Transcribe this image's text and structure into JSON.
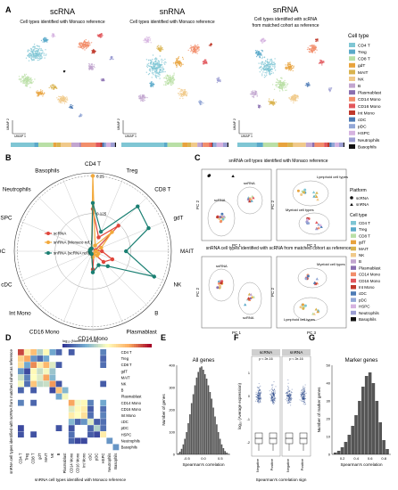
{
  "panels": {
    "A": {
      "letter": "A",
      "umaps": [
        {
          "title": "scRNA",
          "subtitle1": "Cell types identified with Monaco reference",
          "subtitle2": ""
        },
        {
          "title": "snRNA",
          "subtitle1": "Cell types identified with Monaco reference",
          "subtitle2": ""
        },
        {
          "title": "snRNA",
          "subtitle1": "Cell types identified with scRNA",
          "subtitle2": "from matched cohort as reference"
        }
      ],
      "axis_x": "UMAP 1",
      "axis_y": "UMAP 2",
      "legend_title": "Cell type"
    },
    "B": {
      "letter": "B"
    },
    "C": {
      "letter": "C",
      "top_title": "snRNA cell types identified with Monaco reference",
      "bottom_title": "snRNA cell types identified with scRNA from matched cohort as reference",
      "pc1": "PC 1",
      "pc2": "PC 2",
      "pc3": "PC 3",
      "platform_title": "Platform",
      "platforms": [
        "scRNA",
        "snRNA"
      ],
      "celltype_title": "Cell type",
      "annotations": {
        "lymphoid": "Lymphoid cell types",
        "myeloid": "Myeloid cell types",
        "scrna": "scRNA",
        "snrna": "snRNA"
      }
    },
    "D": {
      "letter": "D",
      "scale_label": "log₁₀ (Number of cells)",
      "ylabel": "snRNA cell types identified with scRNA from matched cohort as reference",
      "xlabel": "snRNA cell types identified with Monaco reference"
    },
    "E": {
      "letter": "E",
      "title": "All genes",
      "xlabel": "Spearman's correlation",
      "ylabel": "Number of genes",
      "yticks": [
        "0",
        "100",
        "200",
        "300",
        "400"
      ],
      "xticks": [
        "-0.5",
        "0.0",
        "0.5"
      ]
    },
    "F": {
      "letter": "F",
      "ylabel": "log₁₀ (Average expression)",
      "xlabel": "Spearman's correlation sign",
      "facets": [
        "scRNA",
        "snRNA"
      ],
      "pvals": [
        "p < 2e-16",
        "p < 2e-16"
      ],
      "xcats": [
        "Negative",
        "Positive"
      ]
    },
    "G": {
      "letter": "G",
      "title": "Marker genes",
      "xlabel": "Spearman's correlation",
      "ylabel": "Number of marker genes",
      "yticks": [
        "0",
        "10",
        "20",
        "30",
        "40",
        "50"
      ],
      "xticks": [
        "0.2",
        "0.4",
        "0.6",
        "0.8"
      ]
    }
  },
  "cell_types": [
    {
      "name": "CD4 T",
      "color": "#7fc6d4"
    },
    {
      "name": "Treg",
      "color": "#5aa9c9"
    },
    {
      "name": "CD8 T",
      "color": "#b9dfa6"
    },
    {
      "name": "gdT",
      "color": "#e8a33d"
    },
    {
      "name": "MAIT",
      "color": "#d9b34f"
    },
    {
      "name": "NK",
      "color": "#f0c98a"
    },
    {
      "name": "B",
      "color": "#c2a5cf"
    },
    {
      "name": "Plasmablast",
      "color": "#8a6fb0"
    },
    {
      "name": "CD14 Mono",
      "color": "#f28e6b"
    },
    {
      "name": "CD16 Mono",
      "color": "#e2575c"
    },
    {
      "name": "Int Mono",
      "color": "#c0392b"
    },
    {
      "name": "cDC",
      "color": "#4d7bb5"
    },
    {
      "name": "pDC",
      "color": "#93a7d6"
    },
    {
      "name": "HSPC",
      "color": "#d6b3e0"
    },
    {
      "name": "Neutrophils",
      "color": "#9c9ed3"
    },
    {
      "name": "Basophils",
      "color": "#111111"
    }
  ],
  "chart_data": [
    {
      "type": "radar",
      "panel": "B",
      "axes": [
        "CD4 T",
        "Treg",
        "CD8 T",
        "gdT",
        "MAIT",
        "NK",
        "B",
        "Plasmablast",
        "CD14 Mono",
        "CD16 Mono",
        "Int Mono",
        "cDC",
        "pDC",
        "HSPC",
        "Neutrophils",
        "Basophils"
      ],
      "rings": [
        "0.125",
        "0.25"
      ],
      "rmax": 0.26,
      "series": [
        {
          "name": "scRNA",
          "color": "#e0463b",
          "values": [
            0.14,
            0.05,
            0.12,
            0.01,
            0.03,
            0.07,
            0.05,
            0.01,
            0.06,
            0.01,
            0.01,
            0.01,
            0.01,
            0.01,
            0.01,
            0.01
          ]
        },
        {
          "name": "snRNA (Monaco ref.)",
          "color": "#f2a93b",
          "values": [
            0.25,
            0.02,
            0.09,
            0.03,
            0.01,
            0.02,
            0.02,
            0.01,
            0.02,
            0.01,
            0.01,
            0.01,
            0.01,
            0.01,
            0.01,
            0.01
          ]
        },
        {
          "name": "snRNA (scRNA ref.)",
          "color": "#1a7f72",
          "values": [
            0.16,
            0.07,
            0.21,
            0.2,
            0.11,
            0.22,
            0.07,
            0.05,
            0.07,
            0.01,
            0.01,
            0.01,
            0.01,
            0.01,
            0.01,
            0.01
          ]
        }
      ]
    },
    {
      "type": "heatmap",
      "panel": "D",
      "rows": [
        "CD4 T",
        "Treg",
        "CD8 T",
        "gdT",
        "MAIT",
        "NK",
        "B",
        "Plasmablast",
        "CD14 Mono",
        "CD16 Mono",
        "Int Mono",
        "cDC",
        "pDC",
        "HSPC",
        "Neutrophils",
        "Basophils"
      ],
      "cols": [
        "CD4 T",
        "Treg",
        "CD8 T",
        "gdT",
        "MAIT",
        "NK",
        "B",
        "Plasmablast",
        "CD14 Mono",
        "CD16 Mono",
        "Int Mono",
        "cDC",
        "pDC",
        "HSPC",
        "Neutrophils",
        "Basophils"
      ],
      "values": [
        [
          4.5,
          2.8,
          3.5,
          1.8,
          2.6,
          1.2,
          0.5,
          0,
          0.4,
          0,
          0,
          0,
          0,
          0.8,
          0,
          0
        ],
        [
          3.2,
          3.8,
          1.0,
          0.5,
          1.2,
          0,
          0,
          0,
          0,
          0,
          0,
          0,
          0,
          0.5,
          0,
          0
        ],
        [
          3.0,
          1.2,
          4.0,
          2.8,
          3.6,
          2.2,
          0.4,
          0,
          0,
          0,
          0,
          0,
          0,
          0.6,
          0,
          0
        ],
        [
          1.0,
          0.2,
          2.6,
          2.0,
          2.4,
          1.6,
          0,
          0,
          0,
          0,
          0,
          0,
          0,
          0,
          0,
          0
        ],
        [
          2.0,
          0.8,
          2.5,
          2.2,
          3.8,
          1.4,
          0,
          0,
          0,
          0,
          0,
          0,
          0,
          0,
          0,
          0
        ],
        [
          2.4,
          0.6,
          3.4,
          1.9,
          2.0,
          3.9,
          0.3,
          0,
          0,
          0,
          0,
          0,
          0,
          0.4,
          0,
          0
        ],
        [
          0.5,
          0,
          0.4,
          0,
          0,
          0.2,
          3.4,
          1.4,
          0,
          0,
          0,
          0,
          0,
          0,
          0,
          0
        ],
        [
          0,
          0,
          0,
          0,
          0,
          0,
          1.2,
          2.4,
          0,
          0,
          0,
          0,
          0,
          0,
          0,
          0
        ],
        [
          0.8,
          0,
          0.5,
          0,
          0,
          0,
          0,
          0,
          3.8,
          2.4,
          2.6,
          0.8,
          0,
          1.2,
          0,
          0
        ],
        [
          0,
          0,
          0,
          0,
          0,
          0,
          0,
          0,
          2.2,
          2.6,
          2.8,
          0.4,
          0,
          0.6,
          0,
          0
        ],
        [
          0,
          0,
          0,
          0,
          0,
          0,
          0,
          0,
          2.8,
          2.5,
          3.0,
          0.6,
          0,
          0.8,
          0,
          0
        ],
        [
          0,
          0,
          0,
          0,
          0,
          0,
          0,
          0,
          1.4,
          0.5,
          1.0,
          2.2,
          0.4,
          0.6,
          0,
          0
        ],
        [
          0.2,
          0,
          0,
          0,
          0,
          0,
          0.3,
          0,
          0.3,
          0,
          0,
          0.5,
          1.8,
          0.6,
          0,
          0
        ],
        [
          0.3,
          0,
          0.3,
          0,
          0,
          0,
          0,
          0,
          0.6,
          0,
          0,
          0.4,
          0.2,
          2.8,
          0,
          0
        ],
        [
          0,
          0,
          0,
          0,
          0,
          0,
          0,
          0,
          0.5,
          0.2,
          0.2,
          0,
          0,
          0,
          1.0,
          0
        ],
        [
          0,
          0,
          0,
          0,
          0,
          0,
          0,
          0,
          0,
          0,
          0,
          0,
          0,
          0,
          0,
          1.0
        ]
      ],
      "scale": [
        0,
        5
      ]
    },
    {
      "type": "histogram",
      "panel": "E",
      "title": "All genes",
      "x_range": [
        -0.8,
        0.8
      ],
      "y_range": [
        0,
        400
      ],
      "bins_center": [
        -0.75,
        -0.7,
        -0.65,
        -0.6,
        -0.55,
        -0.5,
        -0.45,
        -0.4,
        -0.35,
        -0.3,
        -0.25,
        -0.2,
        -0.15,
        -0.1,
        -0.05,
        0,
        0.05,
        0.1,
        0.15,
        0.2,
        0.25,
        0.3,
        0.35,
        0.4,
        0.45,
        0.5,
        0.55,
        0.6,
        0.65,
        0.7,
        0.75
      ],
      "counts": [
        5,
        12,
        25,
        45,
        70,
        100,
        140,
        180,
        230,
        270,
        310,
        345,
        370,
        390,
        395,
        380,
        360,
        340,
        310,
        280,
        250,
        210,
        170,
        135,
        100,
        70,
        45,
        28,
        15,
        8,
        3
      ]
    },
    {
      "type": "histogram",
      "panel": "G",
      "title": "Marker genes",
      "x_range": [
        0.05,
        0.9
      ],
      "y_range": [
        0,
        50
      ],
      "bins_center": [
        0.1,
        0.15,
        0.2,
        0.25,
        0.3,
        0.35,
        0.4,
        0.45,
        0.5,
        0.55,
        0.6,
        0.65,
        0.7,
        0.75,
        0.8,
        0.85
      ],
      "counts": [
        1,
        2,
        4,
        7,
        11,
        16,
        22,
        30,
        38,
        44,
        46,
        40,
        30,
        18,
        8,
        3
      ]
    }
  ]
}
